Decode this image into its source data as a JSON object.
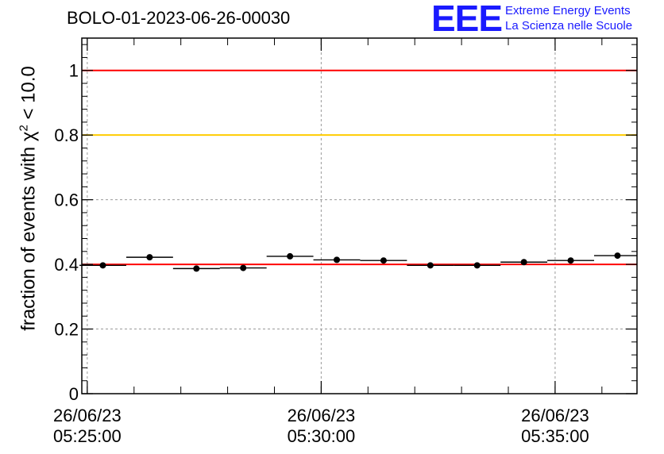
{
  "title": "BOLO-01-2023-06-26-00030",
  "logo": {
    "mark": "EEE",
    "line1": "Extreme Energy Events",
    "line2": "La Scienza nelle Scuole",
    "color": "#1a1aff"
  },
  "chart_data": {
    "type": "scatter",
    "title": "BOLO-01-2023-06-26-00030",
    "ylabel_prefix": "fraction of events with χ",
    "ylabel_sup": "2",
    "ylabel_suffix": " < 10.0",
    "ylim": [
      0,
      1.1
    ],
    "yticks": [
      0,
      0.2,
      0.4,
      0.6,
      0.8,
      1
    ],
    "ytick_labels": [
      "0",
      "0.2",
      "0.4",
      "0.6",
      "0.8",
      "1"
    ],
    "xlim": [
      "05:24:53",
      "05:36:45"
    ],
    "xticks": [
      {
        "time": "05:25:00",
        "date": "26/06/23",
        "clock": "05:25:00"
      },
      {
        "time": "05:30:00",
        "date": "26/06/23",
        "clock": "05:30:00"
      },
      {
        "time": "05:35:00",
        "date": "26/06/23",
        "clock": "05:35:00"
      }
    ],
    "grid": true,
    "reference_lines": [
      {
        "y": 1.0,
        "color": "#ff0000"
      },
      {
        "y": 0.8,
        "color": "#ffcc00"
      },
      {
        "y": 0.4,
        "color": "#ff0000"
      }
    ],
    "points": [
      {
        "x": "05:25:20",
        "x_start": "05:24:50",
        "x_end": "05:25:50",
        "y": 0.397
      },
      {
        "x": "05:26:20",
        "x_start": "05:25:50",
        "x_end": "05:26:50",
        "y": 0.422
      },
      {
        "x": "05:27:20",
        "x_start": "05:26:50",
        "x_end": "05:27:50",
        "y": 0.387
      },
      {
        "x": "05:28:20",
        "x_start": "05:27:50",
        "x_end": "05:28:50",
        "y": 0.389
      },
      {
        "x": "05:29:20",
        "x_start": "05:28:50",
        "x_end": "05:29:50",
        "y": 0.425
      },
      {
        "x": "05:30:20",
        "x_start": "05:29:50",
        "x_end": "05:30:50",
        "y": 0.414
      },
      {
        "x": "05:31:20",
        "x_start": "05:30:50",
        "x_end": "05:31:50",
        "y": 0.412
      },
      {
        "x": "05:32:20",
        "x_start": "05:31:50",
        "x_end": "05:32:50",
        "y": 0.397
      },
      {
        "x": "05:33:20",
        "x_start": "05:32:50",
        "x_end": "05:33:50",
        "y": 0.397
      },
      {
        "x": "05:34:20",
        "x_start": "05:33:50",
        "x_end": "05:34:50",
        "y": 0.407
      },
      {
        "x": "05:35:20",
        "x_start": "05:34:50",
        "x_end": "05:35:50",
        "y": 0.412
      },
      {
        "x": "05:36:20",
        "x_start": "05:35:50",
        "x_end": "05:36:45",
        "y": 0.427
      }
    ]
  }
}
